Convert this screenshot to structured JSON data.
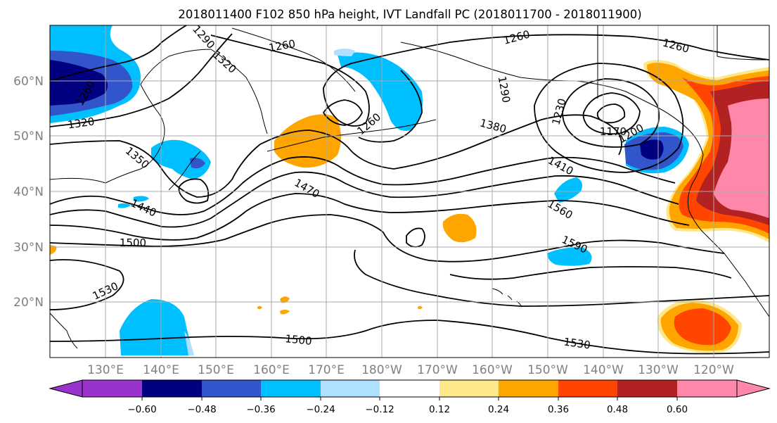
{
  "title": "2018011400 F102 850 hPa height, IVT Landfall PC (2018011700 - 2018011900)",
  "map": {
    "lon_labels": [
      "130°E",
      "140°E",
      "150°E",
      "160°E",
      "170°E",
      "180°W",
      "170°W",
      "160°W",
      "150°W",
      "140°W",
      "130°W",
      "120°W"
    ],
    "lat_labels": [
      "60°N",
      "50°N",
      "40°N",
      "30°N",
      "20°N"
    ],
    "contour_labels": [
      "1290",
      "1320",
      "1260",
      "1320",
      "1260",
      "1260",
      "1260",
      "1260",
      "1290",
      "1230",
      "1380",
      "1170",
      "1200",
      "1350",
      "1410",
      "1470",
      "1440",
      "1560",
      "1500",
      "1590",
      "1530",
      "1500",
      "1530"
    ]
  },
  "colorbar": {
    "tick_labels": [
      "−0.60",
      "−0.48",
      "−0.36",
      "−0.24",
      "−0.12",
      "0.12",
      "0.24",
      "0.36",
      "0.48",
      "0.60"
    ],
    "colors": [
      "#9933cc",
      "#000080",
      "#3355cc",
      "#00bfff",
      "#b0e0ff",
      "#ffffff",
      "#ffe88a",
      "#ffa500",
      "#ff4500",
      "#b22222",
      "#ff88aa",
      "#ff88aa"
    ]
  },
  "fill_colors": {
    "deep_blue": "#000080",
    "blue": "#3355cc",
    "sky": "#00bfff",
    "light_sky": "#b0e0ff",
    "yellow": "#ffe88a",
    "orange": "#ffa500",
    "red_orange": "#ff4500",
    "dark_red": "#b22222",
    "pink": "#ff88aa"
  }
}
